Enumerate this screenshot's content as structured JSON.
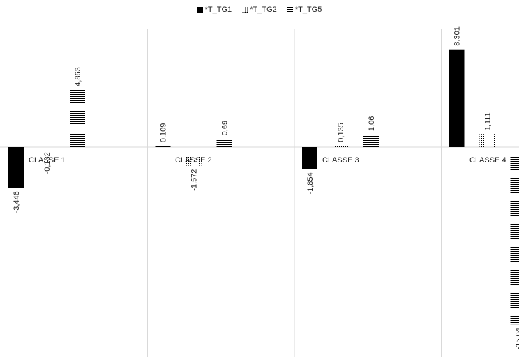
{
  "chart_data": {
    "type": "bar",
    "categories": [
      "CLASSE 1",
      "CLASSE 2",
      "CLASSE 3",
      "CLASSE 4"
    ],
    "series": [
      {
        "name": "*T_TG1",
        "values": [
          -3.446,
          0.109,
          -1.854,
          8.301
        ],
        "labels": [
          "-3,446",
          "0,109",
          "-1,854",
          "8,301"
        ]
      },
      {
        "name": "*T_TG2",
        "values": [
          -0.132,
          -1.572,
          0.135,
          1.111
        ],
        "labels": [
          "-0,132",
          "-1,572",
          "0,135",
          "1,111"
        ]
      },
      {
        "name": "*T_TG5",
        "values": [
          4.863,
          0.69,
          1.06,
          -15.04
        ],
        "labels": [
          "4,863",
          "0,69",
          "1,06",
          "-15,04"
        ]
      }
    ],
    "legend_position": "top",
    "grid": "vertical category separators",
    "colors": {
      "axis": "#d9d9d9",
      "bars": "#000000"
    }
  }
}
